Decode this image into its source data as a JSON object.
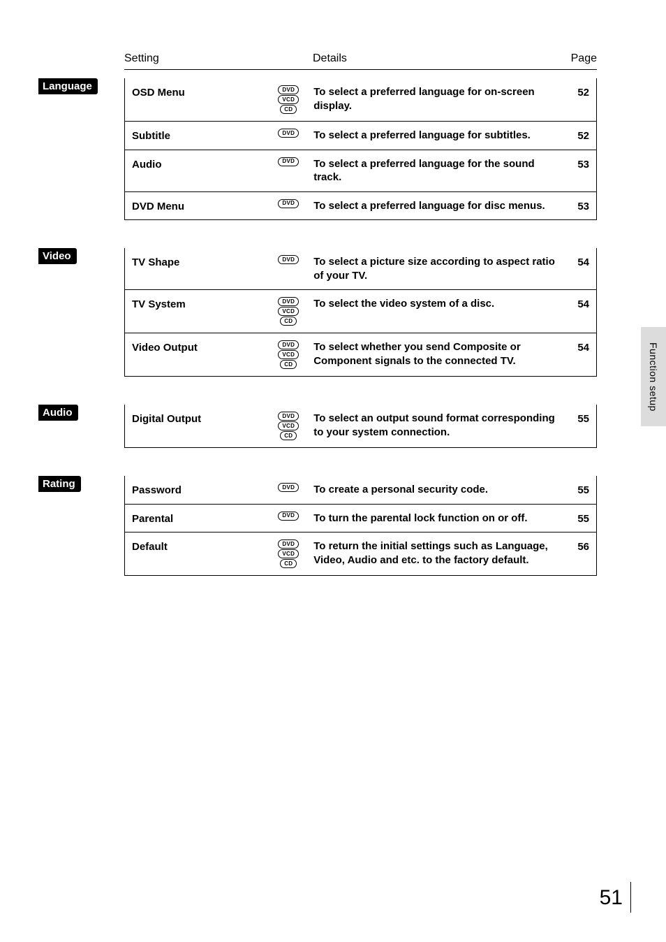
{
  "header": {
    "setting": "Setting",
    "details": "Details",
    "page": "Page"
  },
  "sideTab": "Function setup",
  "pageNumber": "51",
  "sections": [
    {
      "category": "Language",
      "rows": [
        {
          "setting": "OSD Menu",
          "media": [
            "DVD",
            "VCD",
            "CD"
          ],
          "details": "To select a preferred language for  on-screen display.",
          "page": "52"
        },
        {
          "setting": "Subtitle",
          "media": [
            "DVD"
          ],
          "details": "To select a preferred language for subtitles.",
          "page": "52"
        },
        {
          "setting": "Audio",
          "media": [
            "DVD"
          ],
          "details": "To select a preferred language for the sound track.",
          "page": "53"
        },
        {
          "setting": "DVD Menu",
          "media": [
            "DVD"
          ],
          "details": "To select a preferred language for disc menus.",
          "page": "53"
        }
      ]
    },
    {
      "category": "Video",
      "rows": [
        {
          "setting": "TV Shape",
          "media": [
            "DVD"
          ],
          "details": "To select a picture size according to aspect ratio of your TV.",
          "page": "54"
        },
        {
          "setting": "TV System",
          "media": [
            "DVD",
            "VCD",
            "CD"
          ],
          "details": "To select the video system of a disc.",
          "page": "54"
        },
        {
          "setting": "Video Output",
          "media": [
            "DVD",
            "VCD",
            "CD"
          ],
          "details": "To select whether you send Composite or Component signals to the connected TV.",
          "page": "54"
        }
      ]
    },
    {
      "category": "Audio",
      "rows": [
        {
          "setting": "Digital Output",
          "media": [
            "DVD",
            "VCD",
            "CD"
          ],
          "details": "To select an output sound format corresponding to your system connection.",
          "page": "55"
        }
      ]
    },
    {
      "category": "Rating",
      "rows": [
        {
          "setting": "Password",
          "media": [
            "DVD"
          ],
          "details": "To create a personal security code.",
          "page": "55"
        },
        {
          "setting": "Parental",
          "media": [
            "DVD"
          ],
          "details": "To turn the parental lock function on or off.",
          "page": "55"
        },
        {
          "setting": "Default",
          "media": [
            "DVD",
            "VCD",
            "CD"
          ],
          "details": "To return the initial settings such as Language, Video, Audio and etc. to the factory default.",
          "page": "56"
        }
      ]
    }
  ]
}
